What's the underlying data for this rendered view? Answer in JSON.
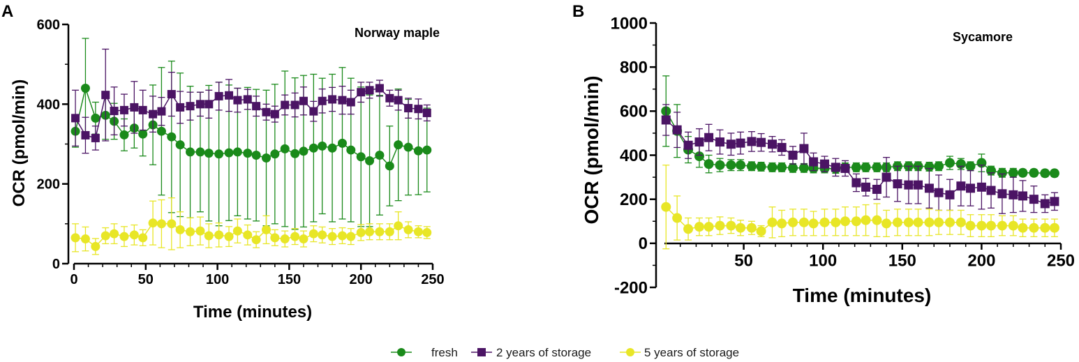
{
  "panels": [
    {
      "label": "A",
      "title": "Norway maple",
      "xlabel": "Time (minutes)",
      "ylabel": "OCR (pmol/min)",
      "xlim": [
        0,
        250
      ],
      "ylim": [
        0,
        600
      ],
      "xticks": [
        "0",
        "50",
        "100",
        "150",
        "200",
        "250"
      ],
      "yticks": [
        "0",
        "200",
        "400",
        "600"
      ]
    },
    {
      "label": "B",
      "title": "Sycamore",
      "xlabel": "Time (minutes)",
      "ylabel": "OCR (pmol/min)",
      "xlim": [
        0,
        250
      ],
      "ylim": [
        -200,
        1000
      ],
      "xticks": [
        "50",
        "100",
        "150",
        "200",
        "250"
      ],
      "yticks": [
        "-200",
        "0",
        "200",
        "400",
        "600",
        "800",
        "1000"
      ]
    }
  ],
  "legend": [
    {
      "label": "fresh",
      "color": "#1a8a1a",
      "marker": "circle"
    },
    {
      "label": "2 years of storage",
      "color": "#4b1464",
      "marker": "square"
    },
    {
      "label": "5 years of storage",
      "color": "#e8e626",
      "marker": "circle"
    }
  ],
  "chart_data": [
    {
      "type": "line",
      "title": "Norway maple",
      "xlabel": "Time (minutes)",
      "ylabel": "OCR (pmol/min)",
      "xlim": [
        0,
        250
      ],
      "ylim": [
        0,
        600
      ],
      "series": [
        {
          "name": "fresh",
          "color": "#1a8a1a",
          "marker": "circle",
          "x": [
            1,
            8,
            15,
            22,
            28,
            35,
            42,
            48,
            55,
            61,
            68,
            74,
            81,
            88,
            94,
            101,
            108,
            114,
            121,
            127,
            134,
            140,
            147,
            154,
            160,
            167,
            173,
            180,
            187,
            193,
            200,
            206,
            213,
            220,
            226,
            233,
            240,
            246
          ],
          "y": [
            332,
            440,
            365,
            372,
            357,
            323,
            340,
            325,
            348,
            332,
            318,
            298,
            280,
            280,
            277,
            275,
            278,
            280,
            277,
            272,
            265,
            275,
            288,
            276,
            282,
            290,
            295,
            290,
            302,
            285,
            268,
            258,
            272,
            245,
            298,
            292,
            283,
            285
          ],
          "err": [
            40,
            125,
            40,
            60,
            45,
            40,
            50,
            55,
            100,
            160,
            190,
            180,
            165,
            150,
            170,
            180,
            170,
            160,
            165,
            165,
            170,
            175,
            195,
            190,
            190,
            185,
            170,
            185,
            190,
            180,
            175,
            165,
            150,
            100,
            140,
            120,
            110,
            105
          ]
        },
        {
          "name": "2 years of storage",
          "color": "#4b1464",
          "marker": "square",
          "x": [
            1,
            8,
            15,
            22,
            28,
            35,
            42,
            48,
            55,
            61,
            68,
            74,
            81,
            88,
            94,
            101,
            108,
            114,
            121,
            127,
            134,
            140,
            147,
            154,
            160,
            167,
            173,
            180,
            187,
            193,
            200,
            206,
            213,
            220,
            226,
            233,
            240,
            246
          ],
          "y": [
            365,
            322,
            315,
            423,
            383,
            385,
            392,
            385,
            375,
            382,
            425,
            392,
            395,
            400,
            400,
            420,
            422,
            410,
            412,
            395,
            380,
            375,
            398,
            398,
            408,
            382,
            408,
            412,
            410,
            405,
            430,
            435,
            440,
            415,
            410,
            390,
            388,
            378
          ],
          "err": [
            70,
            45,
            30,
            115,
            60,
            40,
            65,
            50,
            45,
            35,
            55,
            40,
            35,
            30,
            35,
            35,
            40,
            30,
            25,
            25,
            20,
            20,
            25,
            30,
            35,
            25,
            30,
            30,
            35,
            30,
            25,
            20,
            20,
            20,
            25,
            25,
            25,
            20
          ]
        },
        {
          "name": "5 years of storage",
          "color": "#e8e626",
          "marker": "circle",
          "x": [
            1,
            8,
            15,
            22,
            28,
            35,
            42,
            48,
            55,
            61,
            68,
            74,
            81,
            88,
            94,
            101,
            108,
            114,
            121,
            127,
            134,
            140,
            147,
            154,
            160,
            167,
            173,
            180,
            187,
            193,
            200,
            206,
            213,
            220,
            226,
            233,
            240,
            246
          ],
          "y": [
            65,
            62,
            43,
            70,
            75,
            68,
            72,
            65,
            102,
            100,
            100,
            85,
            80,
            82,
            70,
            72,
            68,
            82,
            72,
            60,
            85,
            65,
            62,
            68,
            62,
            75,
            72,
            68,
            70,
            68,
            78,
            80,
            80,
            80,
            95,
            85,
            80,
            78
          ],
          "err": [
            35,
            30,
            20,
            20,
            25,
            25,
            25,
            20,
            55,
            60,
            65,
            45,
            35,
            35,
            30,
            30,
            25,
            30,
            25,
            20,
            35,
            20,
            20,
            20,
            20,
            20,
            20,
            20,
            20,
            20,
            20,
            20,
            20,
            20,
            35,
            20,
            15,
            15
          ]
        }
      ]
    },
    {
      "type": "line",
      "title": "Sycamore",
      "xlabel": "Time (minutes)",
      "ylabel": "OCR (pmol/min)",
      "xlim": [
        0,
        250
      ],
      "ylim": [
        -200,
        1000
      ],
      "series": [
        {
          "name": "fresh",
          "color": "#1a8a1a",
          "marker": "circle",
          "x": [
            1,
            8,
            15,
            22,
            28,
            35,
            42,
            48,
            55,
            61,
            68,
            74,
            81,
            88,
            94,
            101,
            108,
            114,
            121,
            127,
            134,
            140,
            147,
            154,
            160,
            167,
            173,
            180,
            187,
            193,
            200,
            206,
            213,
            220,
            226,
            233,
            240,
            246
          ],
          "y": [
            600,
            510,
            425,
            395,
            360,
            355,
            355,
            355,
            350,
            348,
            345,
            345,
            342,
            342,
            340,
            340,
            338,
            345,
            345,
            345,
            345,
            345,
            350,
            350,
            350,
            348,
            350,
            365,
            360,
            350,
            365,
            330,
            320,
            320,
            320,
            320,
            318,
            318
          ],
          "err": [
            160,
            120,
            60,
            50,
            40,
            30,
            25,
            25,
            20,
            20,
            20,
            20,
            20,
            20,
            20,
            20,
            20,
            20,
            20,
            20,
            20,
            20,
            20,
            20,
            20,
            20,
            20,
            30,
            25,
            20,
            40,
            20,
            20,
            20,
            15,
            15,
            15,
            15
          ]
        },
        {
          "name": "2 years of storage",
          "color": "#4b1464",
          "marker": "square",
          "x": [
            1,
            8,
            15,
            22,
            28,
            35,
            42,
            48,
            55,
            61,
            68,
            74,
            81,
            88,
            94,
            101,
            108,
            114,
            121,
            127,
            134,
            140,
            147,
            154,
            160,
            167,
            173,
            180,
            187,
            193,
            200,
            206,
            213,
            220,
            226,
            233,
            240,
            246
          ],
          "y": [
            560,
            515,
            445,
            460,
            480,
            460,
            450,
            455,
            462,
            458,
            450,
            435,
            400,
            430,
            370,
            360,
            345,
            340,
            275,
            255,
            245,
            300,
            270,
            265,
            265,
            250,
            230,
            220,
            260,
            250,
            255,
            240,
            225,
            220,
            215,
            200,
            180,
            190
          ],
          "err": [
            70,
            80,
            60,
            60,
            60,
            55,
            50,
            50,
            45,
            40,
            35,
            35,
            40,
            70,
            40,
            35,
            40,
            35,
            40,
            40,
            45,
            90,
            80,
            85,
            85,
            90,
            80,
            70,
            90,
            80,
            100,
            80,
            90,
            80,
            70,
            60,
            40,
            40
          ]
        },
        {
          "name": "5 years of storage",
          "color": "#e8e626",
          "marker": "circle",
          "x": [
            1,
            8,
            15,
            22,
            28,
            35,
            42,
            48,
            55,
            61,
            68,
            74,
            81,
            88,
            94,
            101,
            108,
            114,
            121,
            127,
            134,
            140,
            147,
            154,
            160,
            167,
            173,
            180,
            187,
            193,
            200,
            206,
            213,
            220,
            226,
            233,
            240,
            246
          ],
          "y": [
            165,
            115,
            65,
            75,
            75,
            80,
            80,
            70,
            70,
            55,
            95,
            90,
            95,
            95,
            90,
            95,
            95,
            100,
            100,
            105,
            105,
            90,
            95,
            95,
            95,
            95,
            95,
            95,
            95,
            80,
            80,
            80,
            80,
            80,
            70,
            70,
            70,
            70
          ],
          "err": [
            190,
            100,
            50,
            40,
            40,
            40,
            35,
            35,
            30,
            25,
            70,
            60,
            60,
            60,
            55,
            60,
            60,
            65,
            65,
            70,
            75,
            60,
            60,
            60,
            60,
            60,
            55,
            55,
            55,
            50,
            50,
            50,
            45,
            45,
            40,
            40,
            40,
            40
          ]
        }
      ]
    }
  ]
}
